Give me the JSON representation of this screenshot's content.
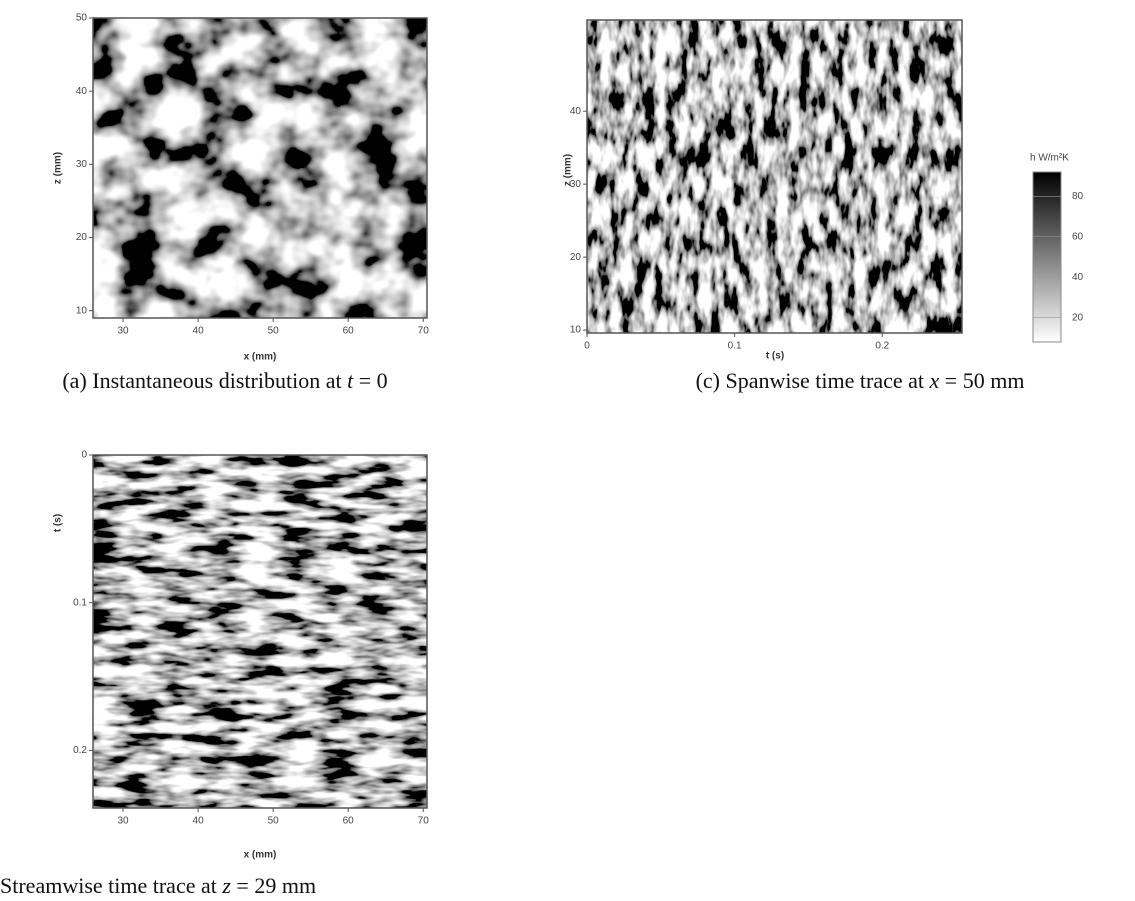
{
  "panels": [
    {
      "caption": [
        "(a) Instantaneous distribution at ",
        "t",
        " = 0"
      ],
      "xlabel": "x (mm)",
      "ylabel": "z (mm)",
      "xlim": [
        26,
        70.5
      ],
      "xticks": [
        30,
        40,
        50,
        60,
        70
      ],
      "ylim": [
        9,
        50
      ],
      "yticks": [
        10,
        20,
        30,
        40,
        50
      ],
      "y_reversed": false
    },
    {
      "caption": [
        "(c) Spanwise time trace at ",
        "x",
        " = 50 mm"
      ],
      "xlabel": "t (s)",
      "ylabel": "z (mm)",
      "xlim": [
        0,
        0.254
      ],
      "xticks": [
        0,
        0.1,
        0.2
      ],
      "ylim": [
        9.6,
        52.5
      ],
      "yticks": [
        10,
        20,
        30,
        40
      ],
      "y_reversed": false
    },
    {
      "caption": [
        "Streamwise time trace at ",
        "z",
        " = 29 mm"
      ],
      "xlabel": "x (mm)",
      "ylabel": "t (s)",
      "xlim": [
        26,
        70.5
      ],
      "xticks": [
        30,
        40,
        50,
        60,
        70
      ],
      "ylim": [
        0,
        0.239
      ],
      "yticks": [
        0,
        0.1,
        0.2
      ],
      "y_reversed": true
    }
  ],
  "colorbar": {
    "label": "h W/m²K",
    "lim": [
      8,
      92
    ],
    "ticks": [
      20,
      40,
      60,
      80
    ]
  }
}
